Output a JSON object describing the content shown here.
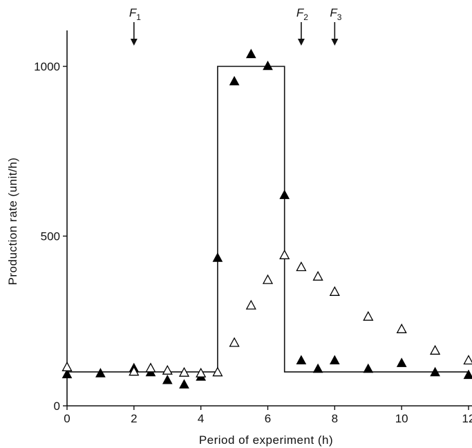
{
  "chart_data": {
    "type": "scatter",
    "title": "",
    "xlabel": "Period of experiment (h)",
    "ylabel": "Production rate (unit/h)",
    "xlim": [
      0,
      12
    ],
    "ylim": [
      0,
      1100
    ],
    "x_ticks": [
      "0",
      "2",
      "4",
      "6",
      "8",
      "10",
      "12"
    ],
    "y_ticks": [
      "0",
      "500",
      "1000"
    ],
    "grid": false,
    "legend": "none",
    "series": [
      {
        "marker": "filled-triangle",
        "color": "#000000",
        "points": [
          [
            0,
            92
          ],
          [
            1,
            95
          ],
          [
            2,
            110
          ],
          [
            2.5,
            98
          ],
          [
            3,
            75
          ],
          [
            3.5,
            62
          ],
          [
            4,
            85
          ],
          [
            4.5,
            435
          ],
          [
            5,
            955
          ],
          [
            5.5,
            1035
          ],
          [
            6,
            1000
          ],
          [
            6.5,
            620
          ],
          [
            7,
            133
          ],
          [
            7.5,
            108
          ],
          [
            8,
            133
          ],
          [
            9,
            108
          ],
          [
            10,
            125
          ],
          [
            11,
            98
          ],
          [
            12,
            90
          ]
        ]
      },
      {
        "marker": "open-triangle",
        "color": "#000000",
        "points": [
          [
            0,
            113
          ],
          [
            2,
            100
          ],
          [
            2.5,
            110
          ],
          [
            3,
            103
          ],
          [
            3.5,
            97
          ],
          [
            4,
            95
          ],
          [
            4.5,
            98
          ],
          [
            5,
            185
          ],
          [
            5.5,
            295
          ],
          [
            6,
            370
          ],
          [
            6.5,
            443
          ],
          [
            7,
            408
          ],
          [
            7.5,
            380
          ],
          [
            8,
            335
          ],
          [
            9,
            262
          ],
          [
            10,
            225
          ],
          [
            11,
            162
          ],
          [
            12,
            133
          ]
        ]
      }
    ],
    "step_line": [
      [
        0,
        100
      ],
      [
        4.5,
        100
      ],
      [
        4.5,
        1000
      ],
      [
        6.5,
        1000
      ],
      [
        6.5,
        100
      ],
      [
        12,
        100
      ]
    ],
    "annotations": [
      {
        "label": "F",
        "sub": "1",
        "x": 2
      },
      {
        "label": "F",
        "sub": "2",
        "x": 7
      },
      {
        "label": "F",
        "sub": "3",
        "x": 8
      }
    ]
  }
}
